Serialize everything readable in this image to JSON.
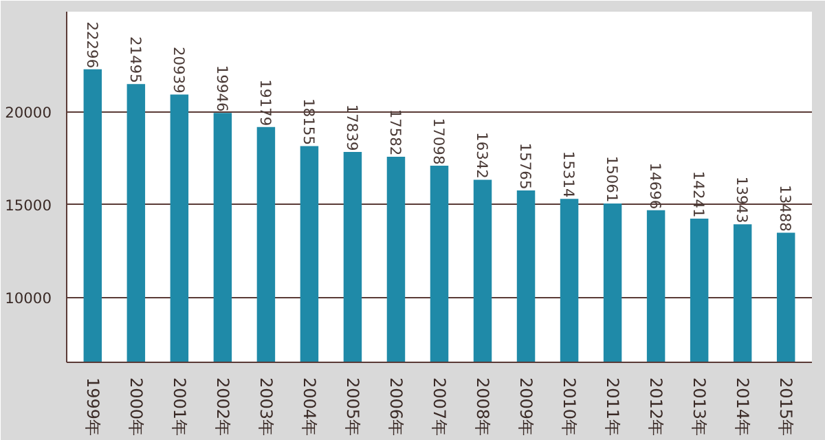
{
  "chart_data": {
    "type": "bar",
    "categories": [
      "1999年",
      "2000年",
      "2001年",
      "2002年",
      "2003年",
      "2004年",
      "2005年",
      "2006年",
      "2007年",
      "2008年",
      "2009年",
      "2010年",
      "2011年",
      "2012年",
      "2013年",
      "2014年",
      "2015年"
    ],
    "values": [
      22296,
      21495,
      20939,
      19946,
      19179,
      18155,
      17839,
      17582,
      17098,
      16342,
      15765,
      15314,
      15061,
      14696,
      14241,
      13943,
      13488
    ],
    "color": "#1f8aa8",
    "ylim": [
      6500,
      25400
    ],
    "yticks": [
      10000,
      15000,
      20000
    ],
    "grid": "y",
    "data_labels": true
  }
}
